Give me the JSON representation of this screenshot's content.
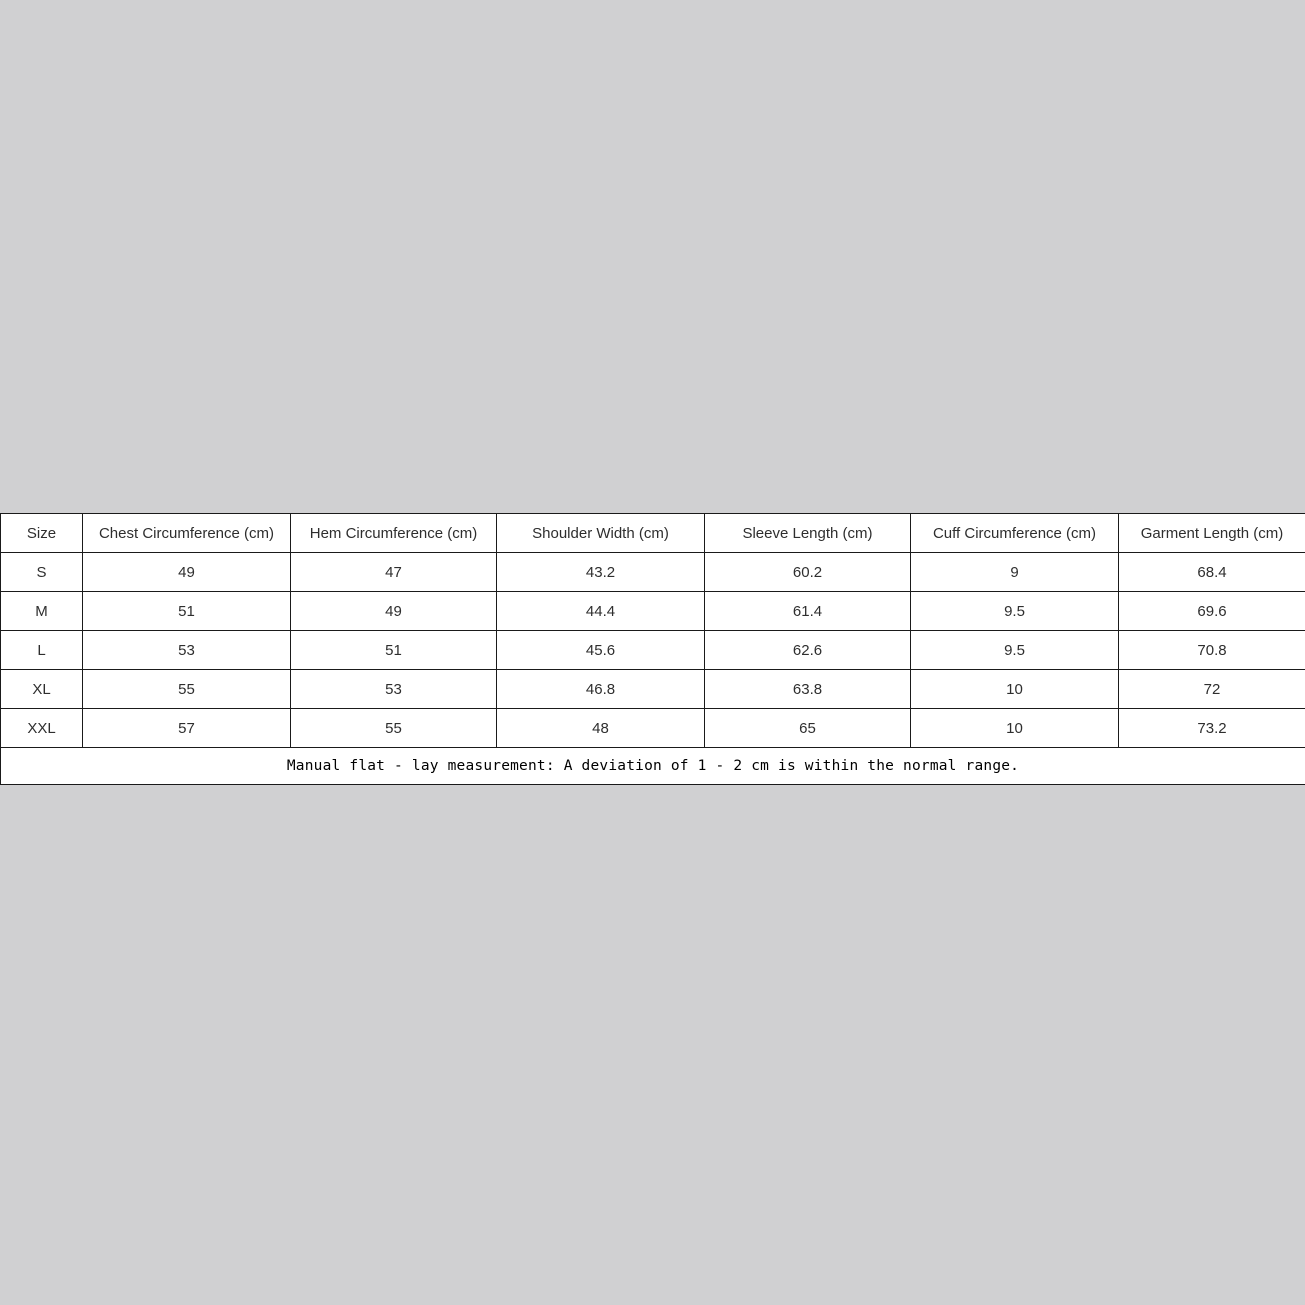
{
  "page": {
    "background_color": "#d0d0d2",
    "table_background_color": "#ffffff",
    "border_color": "#1a1a1a",
    "text_color": "#2e2e2e"
  },
  "size_chart": {
    "headers": [
      "Size",
      "Chest Circumference (cm)",
      "Hem Circumference (cm)",
      "Shoulder Width (cm)",
      "Sleeve Length (cm)",
      "Cuff Circumference (cm)",
      "Garment Length (cm)"
    ],
    "rows": [
      {
        "size": "S",
        "values": [
          "49",
          "47",
          "43.2",
          "60.2",
          "9",
          "68.4"
        ]
      },
      {
        "size": "M",
        "values": [
          "51",
          "49",
          "44.4",
          "61.4",
          "9.5",
          "69.6"
        ]
      },
      {
        "size": "L",
        "values": [
          "53",
          "51",
          "45.6",
          "62.6",
          "9.5",
          "70.8"
        ]
      },
      {
        "size": "XL",
        "values": [
          "55",
          "53",
          "46.8",
          "63.8",
          "10",
          "72"
        ]
      },
      {
        "size": "XXL",
        "values": [
          "57",
          "55",
          "48",
          "65",
          "10",
          "73.2"
        ]
      }
    ],
    "note": "Manual flat - lay measurement: A deviation of 1 - 2 cm is within the normal range."
  }
}
